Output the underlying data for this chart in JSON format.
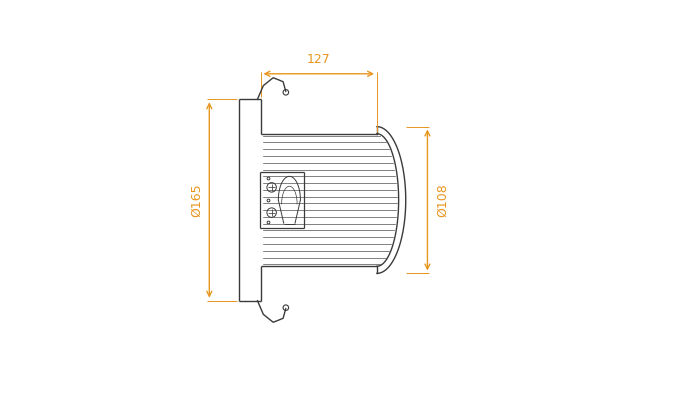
{
  "bg_color": "#ffffff",
  "line_color": "#3a3a3a",
  "dim_color": "#e8961e",
  "dim_127": "127",
  "dim_165": "Ø165",
  "dim_108": "Ø108",
  "figsize": [
    6.75,
    4.0
  ],
  "dpi": 100
}
